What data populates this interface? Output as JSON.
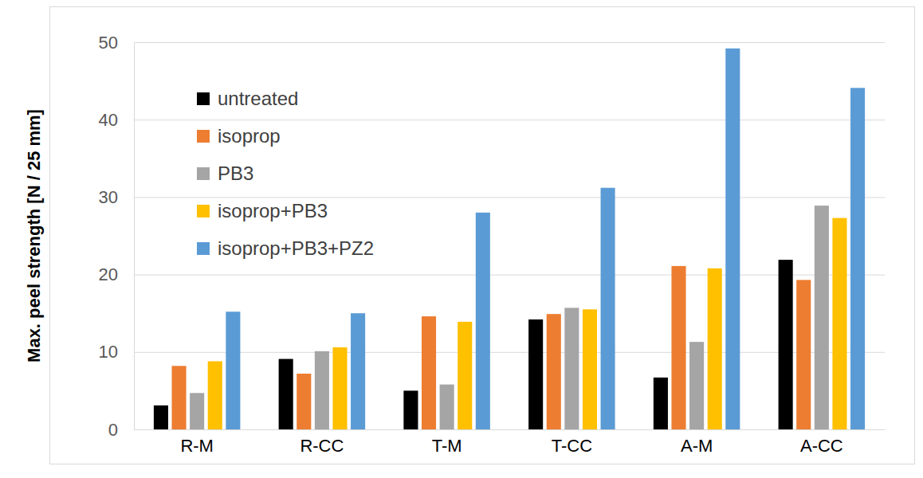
{
  "chart_data": {
    "type": "bar",
    "y_label": "Max. peel strength [N / 25 mm]",
    "categories": [
      "R-M",
      "R-CC",
      "T-M",
      "T-CC",
      "A-M",
      "A-CC"
    ],
    "series": [
      {
        "name": "untreated",
        "color": "#000000",
        "values": [
          3.1,
          9.1,
          5.0,
          14.2,
          6.7,
          21.9
        ]
      },
      {
        "name": "isoprop",
        "color": "#ed7d31",
        "values": [
          8.2,
          7.2,
          14.6,
          14.9,
          21.1,
          19.3
        ]
      },
      {
        "name": "PB3",
        "color": "#a5a5a5",
        "values": [
          4.7,
          10.1,
          5.8,
          15.7,
          11.3,
          28.9
        ]
      },
      {
        "name": "isoprop+PB3",
        "color": "#ffc000",
        "values": [
          8.8,
          10.6,
          13.9,
          15.5,
          20.8,
          27.3
        ]
      },
      {
        "name": "isoprop+PB3+PZ2",
        "color": "#5b9bd5",
        "values": [
          15.2,
          15.0,
          28.0,
          31.2,
          49.2,
          44.1
        ]
      }
    ],
    "ylim": [
      0,
      50
    ],
    "yticks": [
      0,
      10,
      20,
      30,
      40,
      50
    ],
    "grid": true,
    "legend": "upper left"
  }
}
